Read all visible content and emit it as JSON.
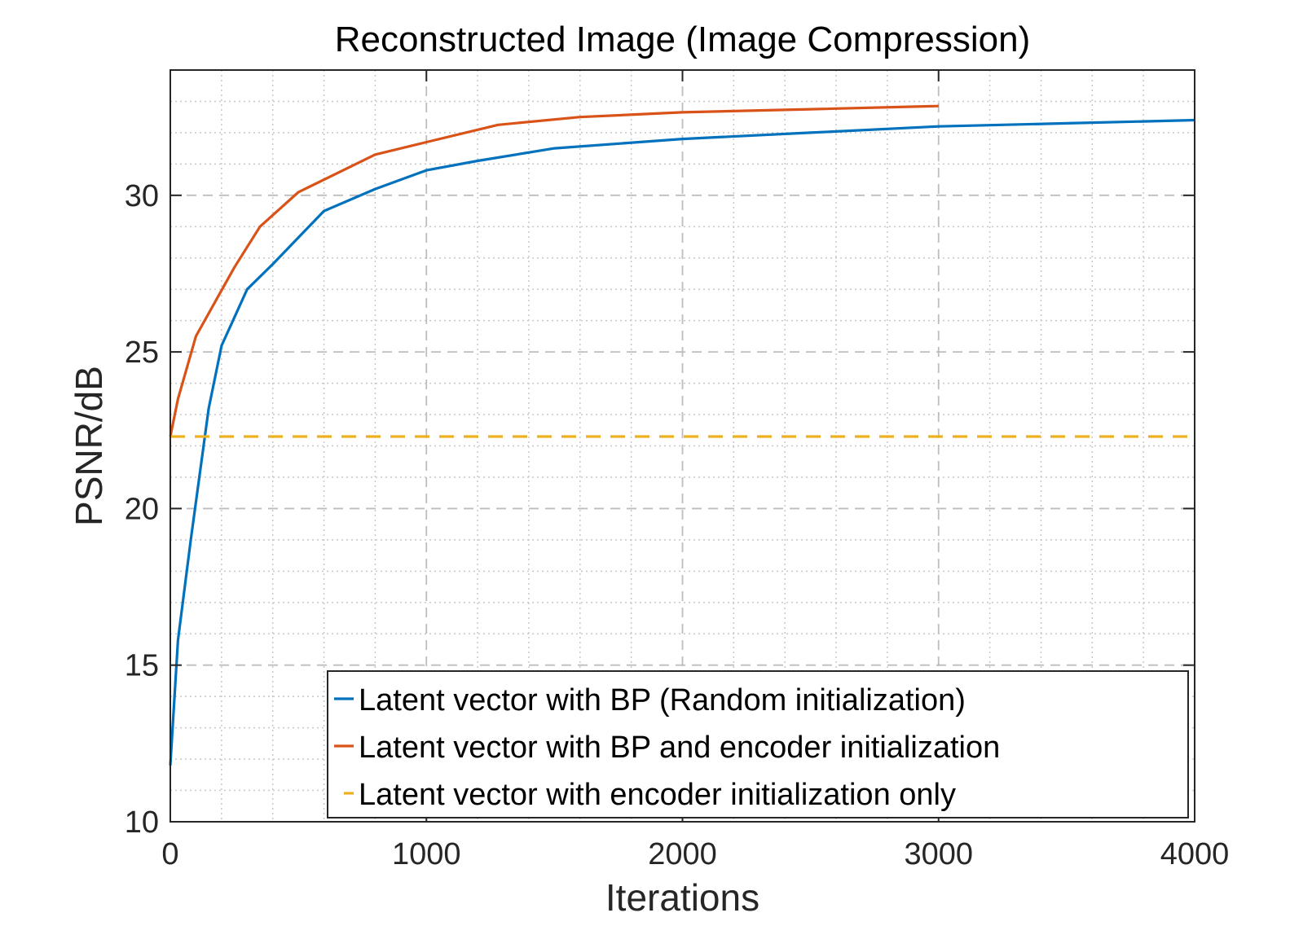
{
  "chart_data": {
    "type": "line",
    "title": "Reconstructed Image (Image Compression)",
    "xlabel": "Iterations",
    "ylabel": "PSNR/dB",
    "xlim": [
      0,
      4000
    ],
    "ylim": [
      10,
      34
    ],
    "xticks": [
      0,
      1000,
      2000,
      3000,
      4000
    ],
    "yticks": [
      10,
      15,
      20,
      25,
      30
    ],
    "xtick_labels": [
      "0",
      "1000",
      "2000",
      "3000",
      "4000"
    ],
    "ytick_labels": [
      "10",
      "15",
      "20",
      "25",
      "30"
    ],
    "x_minor_step": 200,
    "y_minor_step": 1,
    "grid": true,
    "legend_position": "bottom-right",
    "series": [
      {
        "name": "Latent vector with BP (Random initialization)",
        "color": "#0072BD",
        "dash": "solid",
        "x": [
          0,
          30,
          80,
          150,
          200,
          300,
          400,
          600,
          800,
          1000,
          1200,
          1500,
          2000,
          2500,
          3000,
          3500,
          4000
        ],
        "y": [
          11.8,
          15.8,
          19.0,
          23.2,
          25.2,
          27.0,
          27.8,
          29.5,
          30.2,
          30.8,
          31.1,
          31.5,
          31.8,
          32.0,
          32.2,
          32.3,
          32.4
        ]
      },
      {
        "name": "Latent vector with BP and encoder initialization",
        "color": "#D95319",
        "dash": "solid",
        "x": [
          0,
          30,
          100,
          250,
          350,
          500,
          800,
          1000,
          1280,
          1600,
          2000,
          2500,
          3000
        ],
        "y": [
          22.3,
          23.5,
          25.5,
          27.7,
          29.0,
          30.1,
          31.3,
          31.7,
          32.25,
          32.5,
          32.65,
          32.75,
          32.85
        ]
      },
      {
        "name": "Latent vector with encoder initialization only",
        "color": "#EDB120",
        "dash": "dashed",
        "x": [
          0,
          4000
        ],
        "y": [
          22.3,
          22.3
        ]
      }
    ]
  }
}
